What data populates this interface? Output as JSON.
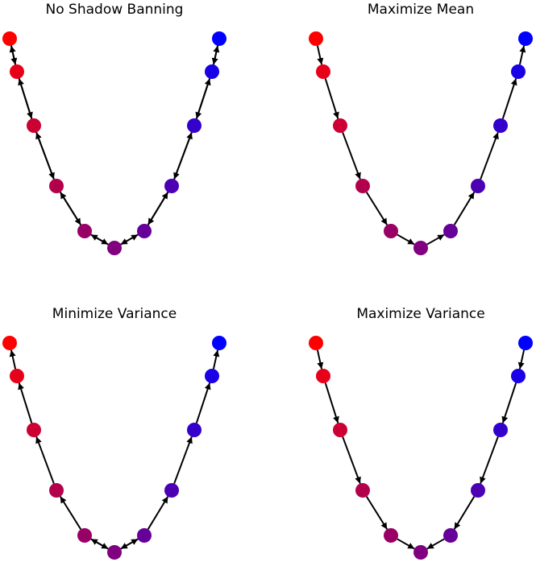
{
  "node_colors": [
    "#ff0000",
    "#e6001a",
    "#cc0033",
    "#b3004d",
    "#990066",
    "#800080",
    "#660099",
    "#4d00b3",
    "#3300cc",
    "#1a00e6",
    "#0000ff"
  ],
  "panels": [
    {
      "title": "No Shadow Banning",
      "edges": [
        [
          0,
          1
        ],
        [
          1,
          0
        ],
        [
          1,
          2
        ],
        [
          2,
          1
        ],
        [
          2,
          3
        ],
        [
          3,
          2
        ],
        [
          3,
          4
        ],
        [
          4,
          3
        ],
        [
          4,
          5
        ],
        [
          5,
          4
        ],
        [
          5,
          6
        ],
        [
          6,
          5
        ],
        [
          6,
          7
        ],
        [
          7,
          6
        ],
        [
          7,
          8
        ],
        [
          8,
          7
        ],
        [
          8,
          9
        ],
        [
          9,
          8
        ],
        [
          9,
          10
        ],
        [
          10,
          9
        ]
      ]
    },
    {
      "title": "Maximize Mean",
      "edges": [
        [
          0,
          1
        ],
        [
          1,
          2
        ],
        [
          2,
          3
        ],
        [
          3,
          4
        ],
        [
          4,
          5
        ],
        [
          5,
          6
        ],
        [
          6,
          7
        ],
        [
          7,
          8
        ],
        [
          8,
          9
        ],
        [
          9,
          10
        ]
      ]
    },
    {
      "title": "Minimize Variance",
      "edges": [
        [
          1,
          0
        ],
        [
          2,
          1
        ],
        [
          3,
          2
        ],
        [
          4,
          3
        ],
        [
          4,
          5
        ],
        [
          5,
          4
        ],
        [
          5,
          6
        ],
        [
          6,
          5
        ],
        [
          6,
          7
        ],
        [
          7,
          8
        ],
        [
          8,
          9
        ],
        [
          9,
          10
        ]
      ]
    },
    {
      "title": "Maximize Variance",
      "edges": [
        [
          0,
          1
        ],
        [
          1,
          2
        ],
        [
          2,
          3
        ],
        [
          3,
          4
        ],
        [
          4,
          5
        ],
        [
          10,
          9
        ],
        [
          9,
          8
        ],
        [
          8,
          7
        ],
        [
          7,
          6
        ],
        [
          6,
          5
        ]
      ]
    }
  ]
}
